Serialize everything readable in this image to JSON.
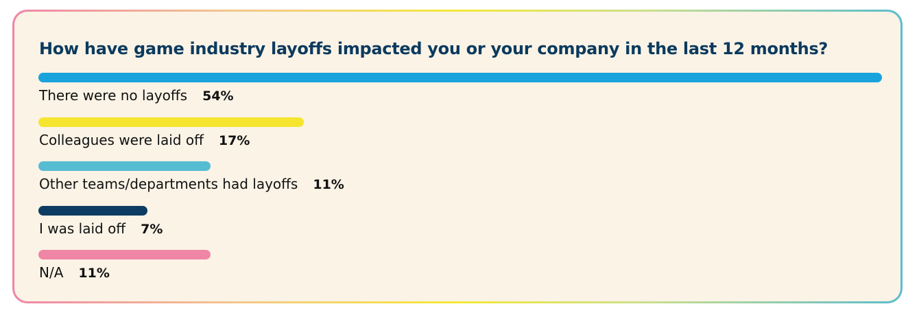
{
  "chart_data": {
    "type": "bar",
    "orientation": "horizontal",
    "title": "How have game industry layoffs impacted you or your company in the last 12 months?",
    "categories": [
      "There were no layoffs",
      "Colleagues were laid off",
      "Other teams/departments had layoffs",
      "I was laid off",
      "N/A"
    ],
    "values": [
      54,
      17,
      11,
      7,
      11
    ],
    "value_labels": [
      "54%",
      "17%",
      "11%",
      "7%",
      "11%"
    ],
    "colors": [
      "#19a3dc",
      "#f5e52f",
      "#56bcd2",
      "#0d3c62",
      "#ef86a6"
    ],
    "xlim": [
      0,
      54
    ],
    "grid": false,
    "legend": "none"
  }
}
